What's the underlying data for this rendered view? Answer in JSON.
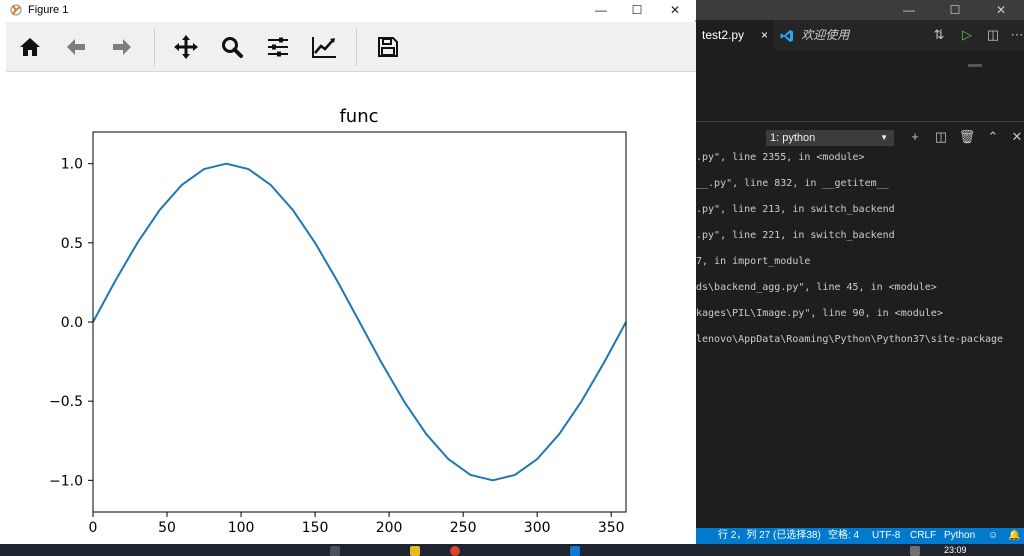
{
  "figure_window": {
    "title": "Figure 1",
    "buttons": {
      "minimize": "—",
      "maximize": "☐",
      "close": "✕"
    },
    "toolbar": [
      {
        "name": "home-icon"
      },
      {
        "name": "back-arrow-icon"
      },
      {
        "name": "forward-arrow-icon"
      },
      {
        "name": "pan-icon"
      },
      {
        "name": "zoom-icon"
      },
      {
        "name": "configure-subplots-icon"
      },
      {
        "name": "edit-axis-icon"
      },
      {
        "name": "save-icon"
      }
    ]
  },
  "chart_data": {
    "type": "line",
    "title": "func",
    "xlabel": "",
    "ylabel": "",
    "xlim": [
      0,
      360
    ],
    "ylim": [
      -1.2,
      1.2
    ],
    "xticks": [
      0,
      50,
      100,
      150,
      200,
      250,
      300,
      350
    ],
    "xtick_labels": [
      "0",
      "50",
      "100",
      "150",
      "200",
      "250",
      "300",
      "350"
    ],
    "yticks": [
      1.0,
      0.5,
      0.0,
      -0.5,
      -1.0
    ],
    "ytick_labels": [
      "1.0",
      "0.5",
      "0.0",
      "−0.5",
      "−1.0"
    ],
    "grid": false,
    "series": [
      {
        "color": "#1f77b4",
        "x": [
          0,
          15,
          30,
          45,
          60,
          75,
          90,
          105,
          120,
          135,
          150,
          165,
          180,
          195,
          210,
          225,
          240,
          255,
          270,
          285,
          300,
          315,
          330,
          345,
          360
        ],
        "y": [
          0.0,
          0.259,
          0.5,
          0.707,
          0.866,
          0.966,
          1.0,
          0.966,
          0.866,
          0.707,
          0.5,
          0.259,
          0.0,
          -0.259,
          -0.5,
          -0.707,
          -0.866,
          -0.966,
          -1.0,
          -0.966,
          -0.866,
          -0.707,
          -0.5,
          -0.259,
          0.0
        ]
      }
    ]
  },
  "vscode": {
    "titlebar_buttons": [
      "—",
      "☐",
      "✕"
    ],
    "tabs": [
      {
        "label": "test2.py",
        "close": "×"
      },
      {
        "label": "欢迎使用"
      }
    ],
    "terminal_select": "1: python",
    "terminal_lines": [
      ".py\", line 2355, in <module>",
      "__.py\", line 832, in __getitem__",
      ".py\", line 213, in switch_backend",
      ".py\", line 221, in switch_backend",
      "7, in import_module",
      "ds\\backend_agg.py\", line 45, in <module>",
      "kages\\PIL\\Image.py\", line 90, in <module>",
      "lenovo\\AppData\\Roaming\\Python\\Python37\\site-package"
    ],
    "status": {
      "position": "行 2，列 27 (已选择38)",
      "spaces": "空格: 4",
      "encoding": "UTF-8",
      "eol": "CRLF",
      "language": "Python"
    }
  },
  "taskbar": {
    "clock": "23:09"
  },
  "colors": {
    "vscode_blue": "#007acc",
    "line_blue": "#1f77b4"
  }
}
